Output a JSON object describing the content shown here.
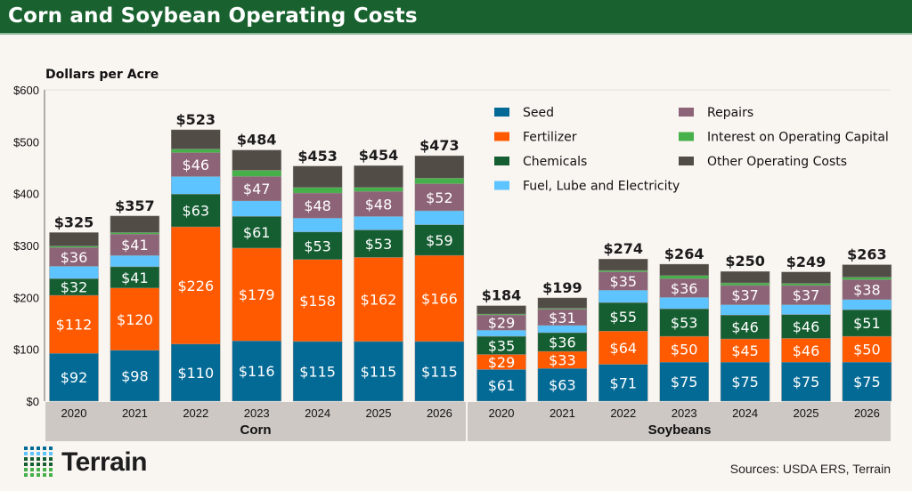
{
  "header": {
    "title": "Corn and Soybean Operating Costs"
  },
  "footer": {
    "source": "Sources: USDA ERS, Terrain",
    "logo_text": "Terrain"
  },
  "colors": {
    "header": "#19622f",
    "background": "#f9f5f1",
    "category_band": "#cdc8c4"
  },
  "chart_data": {
    "type": "bar",
    "stacked": true,
    "ylabel": "Dollars per Acre",
    "ylim": [
      0,
      600
    ],
    "yticks": [
      "$0",
      "$100",
      "$200",
      "$300",
      "$400",
      "$500",
      "$600"
    ],
    "groups": [
      {
        "name": "Corn",
        "categories": [
          "2020",
          "2021",
          "2022",
          "2023",
          "2024",
          "2025",
          "2026"
        ],
        "totals": [
          325,
          357,
          523,
          484,
          453,
          454,
          473
        ],
        "series": {
          "Seed": [
            92,
            98,
            110,
            116,
            115,
            115,
            115
          ],
          "Fertilizer": [
            112,
            120,
            226,
            179,
            158,
            162,
            166
          ],
          "Chemicals": [
            32,
            41,
            63,
            61,
            53,
            53,
            59
          ],
          "Fuel, Lube and Electricity": [
            24,
            22,
            34,
            30,
            27,
            26,
            27
          ],
          "Repairs": [
            36,
            41,
            46,
            47,
            48,
            48,
            52
          ],
          "Interest on Operating Capital": [
            3,
            3,
            7,
            12,
            11,
            8,
            11
          ],
          "Other Operating Costs": [
            26,
            32,
            37,
            39,
            41,
            42,
            43
          ]
        }
      },
      {
        "name": "Soybeans",
        "categories": [
          "2020",
          "2021",
          "2022",
          "2023",
          "2024",
          "2025",
          "2026"
        ],
        "totals": [
          184,
          199,
          274,
          264,
          250,
          249,
          263
        ],
        "series": {
          "Seed": [
            61,
            63,
            71,
            75,
            75,
            75,
            75
          ],
          "Fertilizer": [
            29,
            33,
            64,
            50,
            45,
            46,
            50
          ],
          "Chemicals": [
            35,
            36,
            55,
            53,
            46,
            46,
            51
          ],
          "Fuel, Lube and Electricity": [
            12,
            14,
            24,
            22,
            20,
            19,
            20
          ],
          "Repairs": [
            29,
            31,
            35,
            36,
            37,
            37,
            38
          ],
          "Interest on Operating Capital": [
            2,
            2,
            3,
            6,
            5,
            4,
            5
          ],
          "Other Operating Costs": [
            16,
            20,
            22,
            22,
            22,
            22,
            24
          ]
        }
      }
    ],
    "series_order": [
      "Seed",
      "Fertilizer",
      "Chemicals",
      "Fuel, Lube and Electricity",
      "Repairs",
      "Interest on Operating Capital",
      "Other Operating Costs"
    ],
    "labeled_series": [
      "Seed",
      "Fertilizer",
      "Chemicals",
      "Repairs"
    ],
    "series_colors": {
      "Seed": "#036a96",
      "Fertilizer": "#ff5a00",
      "Chemicals": "#155e32",
      "Fuel, Lube and Electricity": "#5ec4ff",
      "Repairs": "#8d6378",
      "Interest on Operating Capital": "#46b04a",
      "Other Operating Costs": "#524c47"
    },
    "legend": {
      "placement": "top-right",
      "entries": [
        "Seed",
        "Fertilizer",
        "Chemicals",
        "Fuel, Lube and Electricity",
        "Repairs",
        "Interest on Operating Capital",
        "Other Operating Costs"
      ]
    },
    "grid": false
  }
}
